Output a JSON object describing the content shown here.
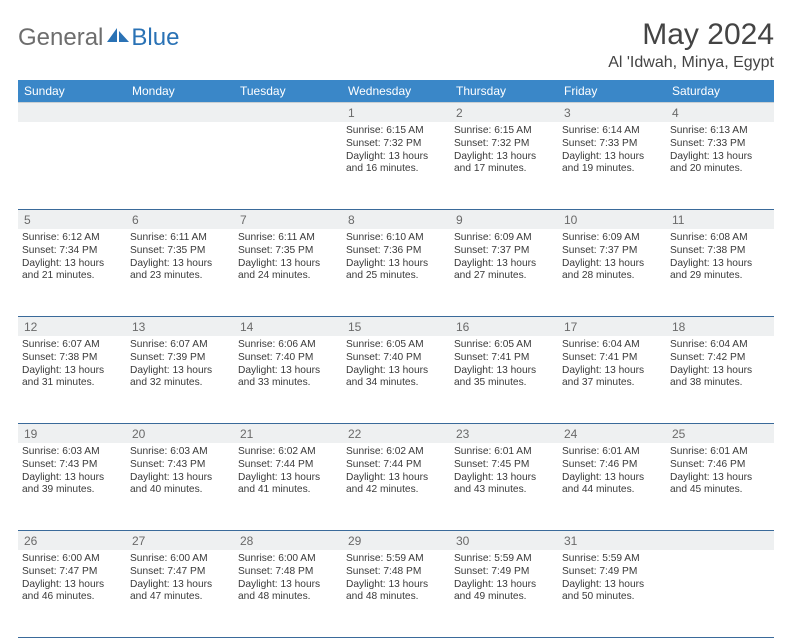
{
  "brand": {
    "general": "General",
    "blue": "Blue"
  },
  "title": "May 2024",
  "location": "Al 'Idwah, Minya, Egypt",
  "colors": {
    "header_bg": "#3a87c8",
    "daynum_bg": "#eef0f1",
    "border": "#3a6a9a",
    "logo_gray": "#6d6d6d",
    "logo_blue": "#2a72b5"
  },
  "day_headers": [
    "Sunday",
    "Monday",
    "Tuesday",
    "Wednesday",
    "Thursday",
    "Friday",
    "Saturday"
  ],
  "weeks": [
    {
      "nums": [
        "",
        "",
        "",
        "1",
        "2",
        "3",
        "4"
      ],
      "cells": [
        null,
        null,
        null,
        {
          "sunrise": "Sunrise: 6:15 AM",
          "sunset": "Sunset: 7:32 PM",
          "daylight": "Daylight: 13 hours and 16 minutes."
        },
        {
          "sunrise": "Sunrise: 6:15 AM",
          "sunset": "Sunset: 7:32 PM",
          "daylight": "Daylight: 13 hours and 17 minutes."
        },
        {
          "sunrise": "Sunrise: 6:14 AM",
          "sunset": "Sunset: 7:33 PM",
          "daylight": "Daylight: 13 hours and 19 minutes."
        },
        {
          "sunrise": "Sunrise: 6:13 AM",
          "sunset": "Sunset: 7:33 PM",
          "daylight": "Daylight: 13 hours and 20 minutes."
        }
      ]
    },
    {
      "nums": [
        "5",
        "6",
        "7",
        "8",
        "9",
        "10",
        "11"
      ],
      "cells": [
        {
          "sunrise": "Sunrise: 6:12 AM",
          "sunset": "Sunset: 7:34 PM",
          "daylight": "Daylight: 13 hours and 21 minutes."
        },
        {
          "sunrise": "Sunrise: 6:11 AM",
          "sunset": "Sunset: 7:35 PM",
          "daylight": "Daylight: 13 hours and 23 minutes."
        },
        {
          "sunrise": "Sunrise: 6:11 AM",
          "sunset": "Sunset: 7:35 PM",
          "daylight": "Daylight: 13 hours and 24 minutes."
        },
        {
          "sunrise": "Sunrise: 6:10 AM",
          "sunset": "Sunset: 7:36 PM",
          "daylight": "Daylight: 13 hours and 25 minutes."
        },
        {
          "sunrise": "Sunrise: 6:09 AM",
          "sunset": "Sunset: 7:37 PM",
          "daylight": "Daylight: 13 hours and 27 minutes."
        },
        {
          "sunrise": "Sunrise: 6:09 AM",
          "sunset": "Sunset: 7:37 PM",
          "daylight": "Daylight: 13 hours and 28 minutes."
        },
        {
          "sunrise": "Sunrise: 6:08 AM",
          "sunset": "Sunset: 7:38 PM",
          "daylight": "Daylight: 13 hours and 29 minutes."
        }
      ]
    },
    {
      "nums": [
        "12",
        "13",
        "14",
        "15",
        "16",
        "17",
        "18"
      ],
      "cells": [
        {
          "sunrise": "Sunrise: 6:07 AM",
          "sunset": "Sunset: 7:38 PM",
          "daylight": "Daylight: 13 hours and 31 minutes."
        },
        {
          "sunrise": "Sunrise: 6:07 AM",
          "sunset": "Sunset: 7:39 PM",
          "daylight": "Daylight: 13 hours and 32 minutes."
        },
        {
          "sunrise": "Sunrise: 6:06 AM",
          "sunset": "Sunset: 7:40 PM",
          "daylight": "Daylight: 13 hours and 33 minutes."
        },
        {
          "sunrise": "Sunrise: 6:05 AM",
          "sunset": "Sunset: 7:40 PM",
          "daylight": "Daylight: 13 hours and 34 minutes."
        },
        {
          "sunrise": "Sunrise: 6:05 AM",
          "sunset": "Sunset: 7:41 PM",
          "daylight": "Daylight: 13 hours and 35 minutes."
        },
        {
          "sunrise": "Sunrise: 6:04 AM",
          "sunset": "Sunset: 7:41 PM",
          "daylight": "Daylight: 13 hours and 37 minutes."
        },
        {
          "sunrise": "Sunrise: 6:04 AM",
          "sunset": "Sunset: 7:42 PM",
          "daylight": "Daylight: 13 hours and 38 minutes."
        }
      ]
    },
    {
      "nums": [
        "19",
        "20",
        "21",
        "22",
        "23",
        "24",
        "25"
      ],
      "cells": [
        {
          "sunrise": "Sunrise: 6:03 AM",
          "sunset": "Sunset: 7:43 PM",
          "daylight": "Daylight: 13 hours and 39 minutes."
        },
        {
          "sunrise": "Sunrise: 6:03 AM",
          "sunset": "Sunset: 7:43 PM",
          "daylight": "Daylight: 13 hours and 40 minutes."
        },
        {
          "sunrise": "Sunrise: 6:02 AM",
          "sunset": "Sunset: 7:44 PM",
          "daylight": "Daylight: 13 hours and 41 minutes."
        },
        {
          "sunrise": "Sunrise: 6:02 AM",
          "sunset": "Sunset: 7:44 PM",
          "daylight": "Daylight: 13 hours and 42 minutes."
        },
        {
          "sunrise": "Sunrise: 6:01 AM",
          "sunset": "Sunset: 7:45 PM",
          "daylight": "Daylight: 13 hours and 43 minutes."
        },
        {
          "sunrise": "Sunrise: 6:01 AM",
          "sunset": "Sunset: 7:46 PM",
          "daylight": "Daylight: 13 hours and 44 minutes."
        },
        {
          "sunrise": "Sunrise: 6:01 AM",
          "sunset": "Sunset: 7:46 PM",
          "daylight": "Daylight: 13 hours and 45 minutes."
        }
      ]
    },
    {
      "nums": [
        "26",
        "27",
        "28",
        "29",
        "30",
        "31",
        ""
      ],
      "cells": [
        {
          "sunrise": "Sunrise: 6:00 AM",
          "sunset": "Sunset: 7:47 PM",
          "daylight": "Daylight: 13 hours and 46 minutes."
        },
        {
          "sunrise": "Sunrise: 6:00 AM",
          "sunset": "Sunset: 7:47 PM",
          "daylight": "Daylight: 13 hours and 47 minutes."
        },
        {
          "sunrise": "Sunrise: 6:00 AM",
          "sunset": "Sunset: 7:48 PM",
          "daylight": "Daylight: 13 hours and 48 minutes."
        },
        {
          "sunrise": "Sunrise: 5:59 AM",
          "sunset": "Sunset: 7:48 PM",
          "daylight": "Daylight: 13 hours and 48 minutes."
        },
        {
          "sunrise": "Sunrise: 5:59 AM",
          "sunset": "Sunset: 7:49 PM",
          "daylight": "Daylight: 13 hours and 49 minutes."
        },
        {
          "sunrise": "Sunrise: 5:59 AM",
          "sunset": "Sunset: 7:49 PM",
          "daylight": "Daylight: 13 hours and 50 minutes."
        },
        null
      ]
    }
  ]
}
